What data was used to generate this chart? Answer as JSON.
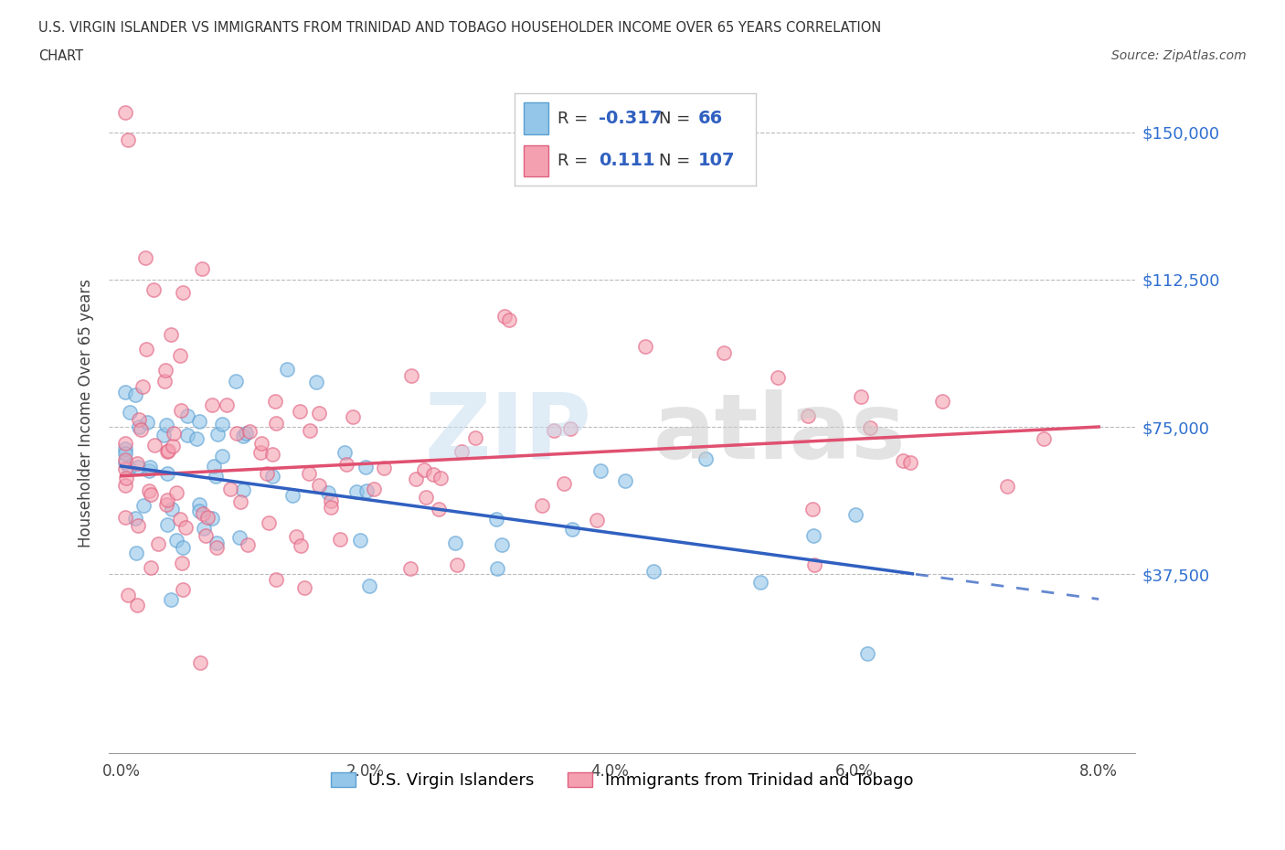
{
  "title_line1": "U.S. VIRGIN ISLANDER VS IMMIGRANTS FROM TRINIDAD AND TOBAGO HOUSEHOLDER INCOME OVER 65 YEARS CORRELATION",
  "title_line2": "CHART",
  "source": "Source: ZipAtlas.com",
  "ylabel": "Householder Income Over 65 years",
  "xlim": [
    -0.001,
    0.083
  ],
  "ylim": [
    -8000,
    165000
  ],
  "yticks": [
    0,
    37500,
    75000,
    112500,
    150000
  ],
  "xticks": [
    0.0,
    0.01,
    0.02,
    0.03,
    0.04,
    0.05,
    0.06,
    0.07,
    0.08
  ],
  "xtick_labels": [
    "0.0%",
    "",
    "2.0%",
    "",
    "4.0%",
    "",
    "6.0%",
    "",
    "8.0%"
  ],
  "ytick_labels": [
    "",
    "$37,500",
    "$75,000",
    "$112,500",
    "$150,000"
  ],
  "blue_color": "#93C6E8",
  "pink_color": "#F4A0B0",
  "blue_edge_color": "#5A9FD4",
  "pink_edge_color": "#E06080",
  "blue_line_color": "#3060C0",
  "pink_line_color": "#E05070",
  "blue_r": -0.317,
  "blue_n": 66,
  "pink_r": 0.111,
  "pink_n": 107,
  "legend1": "U.S. Virgin Islanders",
  "legend2": "Immigrants from Trinidad and Tobago",
  "blue_line_x0": 0.0,
  "blue_line_y0": 65000,
  "blue_line_x1": 0.065,
  "blue_line_y1": 37500,
  "pink_line_x0": 0.0,
  "pink_line_y0": 62500,
  "pink_line_x1": 0.08,
  "pink_line_y1": 75000
}
